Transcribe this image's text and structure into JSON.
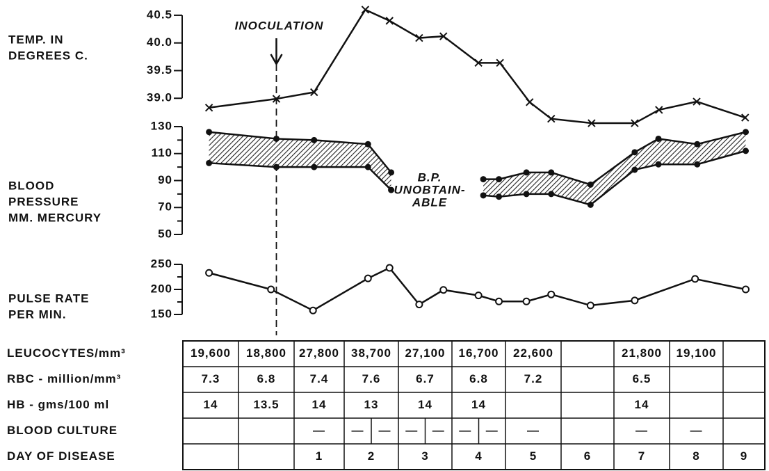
{
  "chart_data": [
    {
      "type": "line",
      "ylabel": [
        "TEMP. IN",
        "DEGREES C."
      ],
      "marker": "x",
      "color": "#111",
      "x": [
        -1.05,
        0.2,
        0.9,
        1.85,
        2.3,
        2.85,
        3.3,
        3.95,
        4.35,
        4.9,
        5.3,
        6.05,
        6.85,
        7.3,
        8.0,
        8.9
      ],
      "values": [
        38.83,
        38.99,
        39.11,
        40.6,
        40.4,
        40.09,
        40.12,
        39.64,
        39.64,
        38.93,
        38.63,
        38.55,
        38.55,
        38.79,
        38.94,
        38.65
      ],
      "ylim": [
        38.45,
        40.65
      ],
      "yticks": [
        {
          "value": 39,
          "label": "39.0"
        },
        39.5,
        {
          "value": 40,
          "label": "40.0"
        },
        40.5
      ],
      "annotation": {
        "text": "INOCULATION",
        "x": 0.2
      }
    },
    {
      "type": "band",
      "ylabel": [
        "BLOOD",
        "PRESSURE",
        "MM. MERCURY"
      ],
      "x": [
        -1.05,
        0.2,
        0.9,
        1.9,
        2.33,
        null,
        4.04,
        4.33,
        4.84,
        5.3,
        6.03,
        6.85,
        7.29,
        8.01,
        8.91
      ],
      "series": [
        {
          "color": "#111",
          "values": [
            126,
            121,
            120,
            117,
            96,
            null,
            91,
            91,
            96,
            96,
            87,
            111,
            121,
            117,
            126
          ]
        },
        {
          "color": "#111",
          "values": [
            103,
            100,
            100,
            100,
            83,
            null,
            79,
            78,
            80,
            80,
            72,
            98,
            102,
            102,
            112
          ]
        }
      ],
      "ylim": [
        50,
        130
      ],
      "yticks": [
        50,
        70,
        90,
        110,
        130
      ],
      "minor_yticks": [
        60,
        80,
        100,
        120
      ],
      "annotation": [
        "B.P.",
        "UNOBTAIN-",
        "ABLE"
      ]
    },
    {
      "type": "line",
      "ylabel": [
        "PULSE RATE",
        "PER MIN."
      ],
      "marker": "o",
      "color": "#111",
      "x": [
        -1.05,
        0.1,
        0.88,
        1.9,
        2.3,
        2.85,
        3.3,
        3.95,
        4.33,
        4.84,
        5.3,
        6.03,
        6.85,
        7.97,
        8.91
      ],
      "values": [
        233,
        200,
        158,
        222,
        243,
        170,
        199,
        188,
        176,
        176,
        190,
        168,
        178,
        221,
        200
      ],
      "ylim": [
        150,
        250
      ],
      "yticks": [
        150,
        200,
        250
      ],
      "minor_yticks": [
        175,
        225
      ]
    }
  ],
  "table": {
    "row_labels": [
      "LEUCOCYTES/mm³",
      "RBC - million/mm³",
      "HB - gms/100 ml",
      "BLOOD CULTURE",
      "DAY OF DISEASE"
    ],
    "rows": [
      [
        "19,600",
        "18,800",
        "27,800",
        "38,700",
        "27,100",
        "16,700",
        "22,600",
        null,
        "21,800",
        "19,100",
        null
      ],
      [
        "7.3",
        "6.8",
        "7.4",
        "7.6",
        "6.7",
        "6.8",
        "7.2",
        null,
        "6.5",
        null,
        null
      ],
      [
        "14",
        "13.5",
        "14",
        "13",
        "14",
        "14",
        null,
        null,
        "14",
        null,
        null
      ],
      [
        null,
        null,
        "—",
        [
          "—",
          "—"
        ],
        [
          "—",
          "—"
        ],
        [
          "—",
          "—"
        ],
        "—",
        null,
        "—",
        "—",
        null
      ],
      [
        null,
        null,
        "1",
        "2",
        "3",
        "4",
        "5",
        "6",
        "7",
        "8",
        "9"
      ]
    ]
  }
}
